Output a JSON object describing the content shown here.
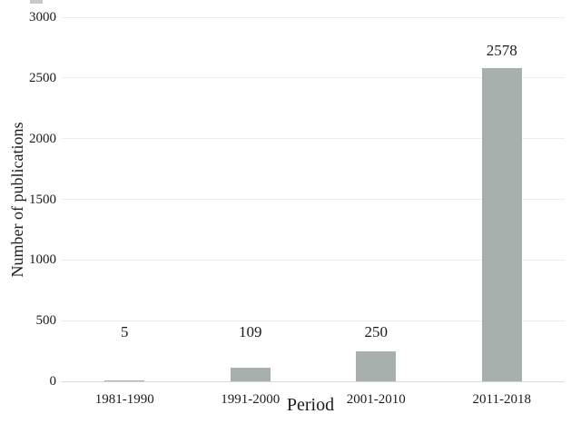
{
  "chart_data": {
    "type": "bar",
    "title": "",
    "categories": [
      "1981-1990",
      "1991-2000",
      "2001-2010",
      "2011-2018"
    ],
    "values": [
      5,
      109,
      250,
      2578
    ],
    "data_labels": [
      "5",
      "109",
      "250",
      "2578"
    ],
    "xlabel": "Period",
    "ylabel": "Number of publications",
    "ylim": [
      0,
      3000
    ],
    "yticks": [
      0,
      500,
      1000,
      1500,
      2000,
      2500,
      3000
    ],
    "grid": true,
    "legend": false,
    "bar_color": "#a8b0ae",
    "gridline_color": "#ececec",
    "baseline_color": "#d9d9d9",
    "text_color": "#1c1c1c",
    "background_color": "#ffffff"
  }
}
